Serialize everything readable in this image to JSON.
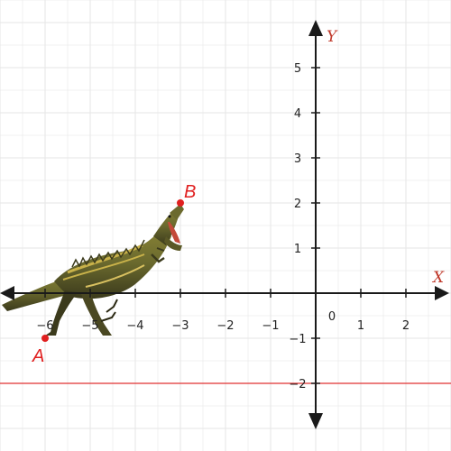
{
  "axes": {
    "x_name": "X",
    "y_name": "Y",
    "x_range": [
      -7,
      3
    ],
    "y_range": [
      -3,
      6
    ],
    "x_ticks": [
      -6,
      -5,
      -4,
      -3,
      -2,
      -1,
      1,
      2
    ],
    "y_ticks": [
      -2,
      -1,
      1,
      2,
      3,
      4,
      5
    ],
    "x_tick_labels": [
      "−6",
      "−5",
      "−4",
      "−3",
      "−2",
      "−1",
      "1",
      "2"
    ],
    "y_tick_labels": [
      "−2",
      "−1",
      "1",
      "2",
      "3",
      "4",
      "5"
    ],
    "origin_label": "0",
    "grid": true,
    "axis_color": "#1a1a1a",
    "grid_color": "#e6e6e6"
  },
  "points": [
    {
      "label": "A",
      "x": -6,
      "y": -1,
      "color": "#e02020"
    },
    {
      "label": "B",
      "x": -3,
      "y": 2,
      "color": "#e02020"
    }
  ],
  "horizontal_line": {
    "y": -2,
    "color": "#e03030"
  },
  "illustration": {
    "icon": "dinosaur-icon",
    "colors": [
      "#6b6a2e",
      "#c9b24a",
      "#3b3a1c"
    ]
  }
}
